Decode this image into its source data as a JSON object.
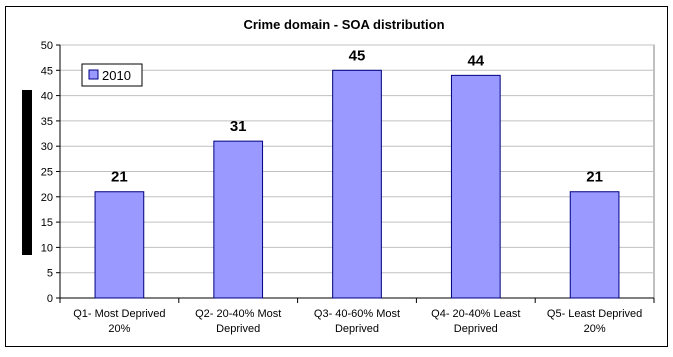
{
  "chart_data": {
    "type": "bar",
    "title": "Crime domain - SOA distribution",
    "categories": [
      [
        "Q1- Most Deprived",
        "20%"
      ],
      [
        "Q2- 20-40% Most",
        "Deprived"
      ],
      [
        "Q3- 40-60% Most",
        "Deprived"
      ],
      [
        "Q4- 20-40% Least",
        "Deprived"
      ],
      [
        "Q5- Least Deprived",
        "20%"
      ]
    ],
    "series": [
      {
        "name": "2010",
        "values": [
          21,
          31,
          45,
          44,
          21
        ]
      }
    ],
    "ylim": [
      0,
      50
    ],
    "yticks": [
      0,
      5,
      10,
      15,
      20,
      25,
      30,
      35,
      40,
      45,
      50
    ],
    "grid": true,
    "legend_position": "top-left",
    "colors": {
      "bar_fill": "#9999ff",
      "bar_stroke": "#000080",
      "plot_bg": "#ffffff",
      "grid": "#c0c0c0",
      "axis": "#808080"
    }
  }
}
